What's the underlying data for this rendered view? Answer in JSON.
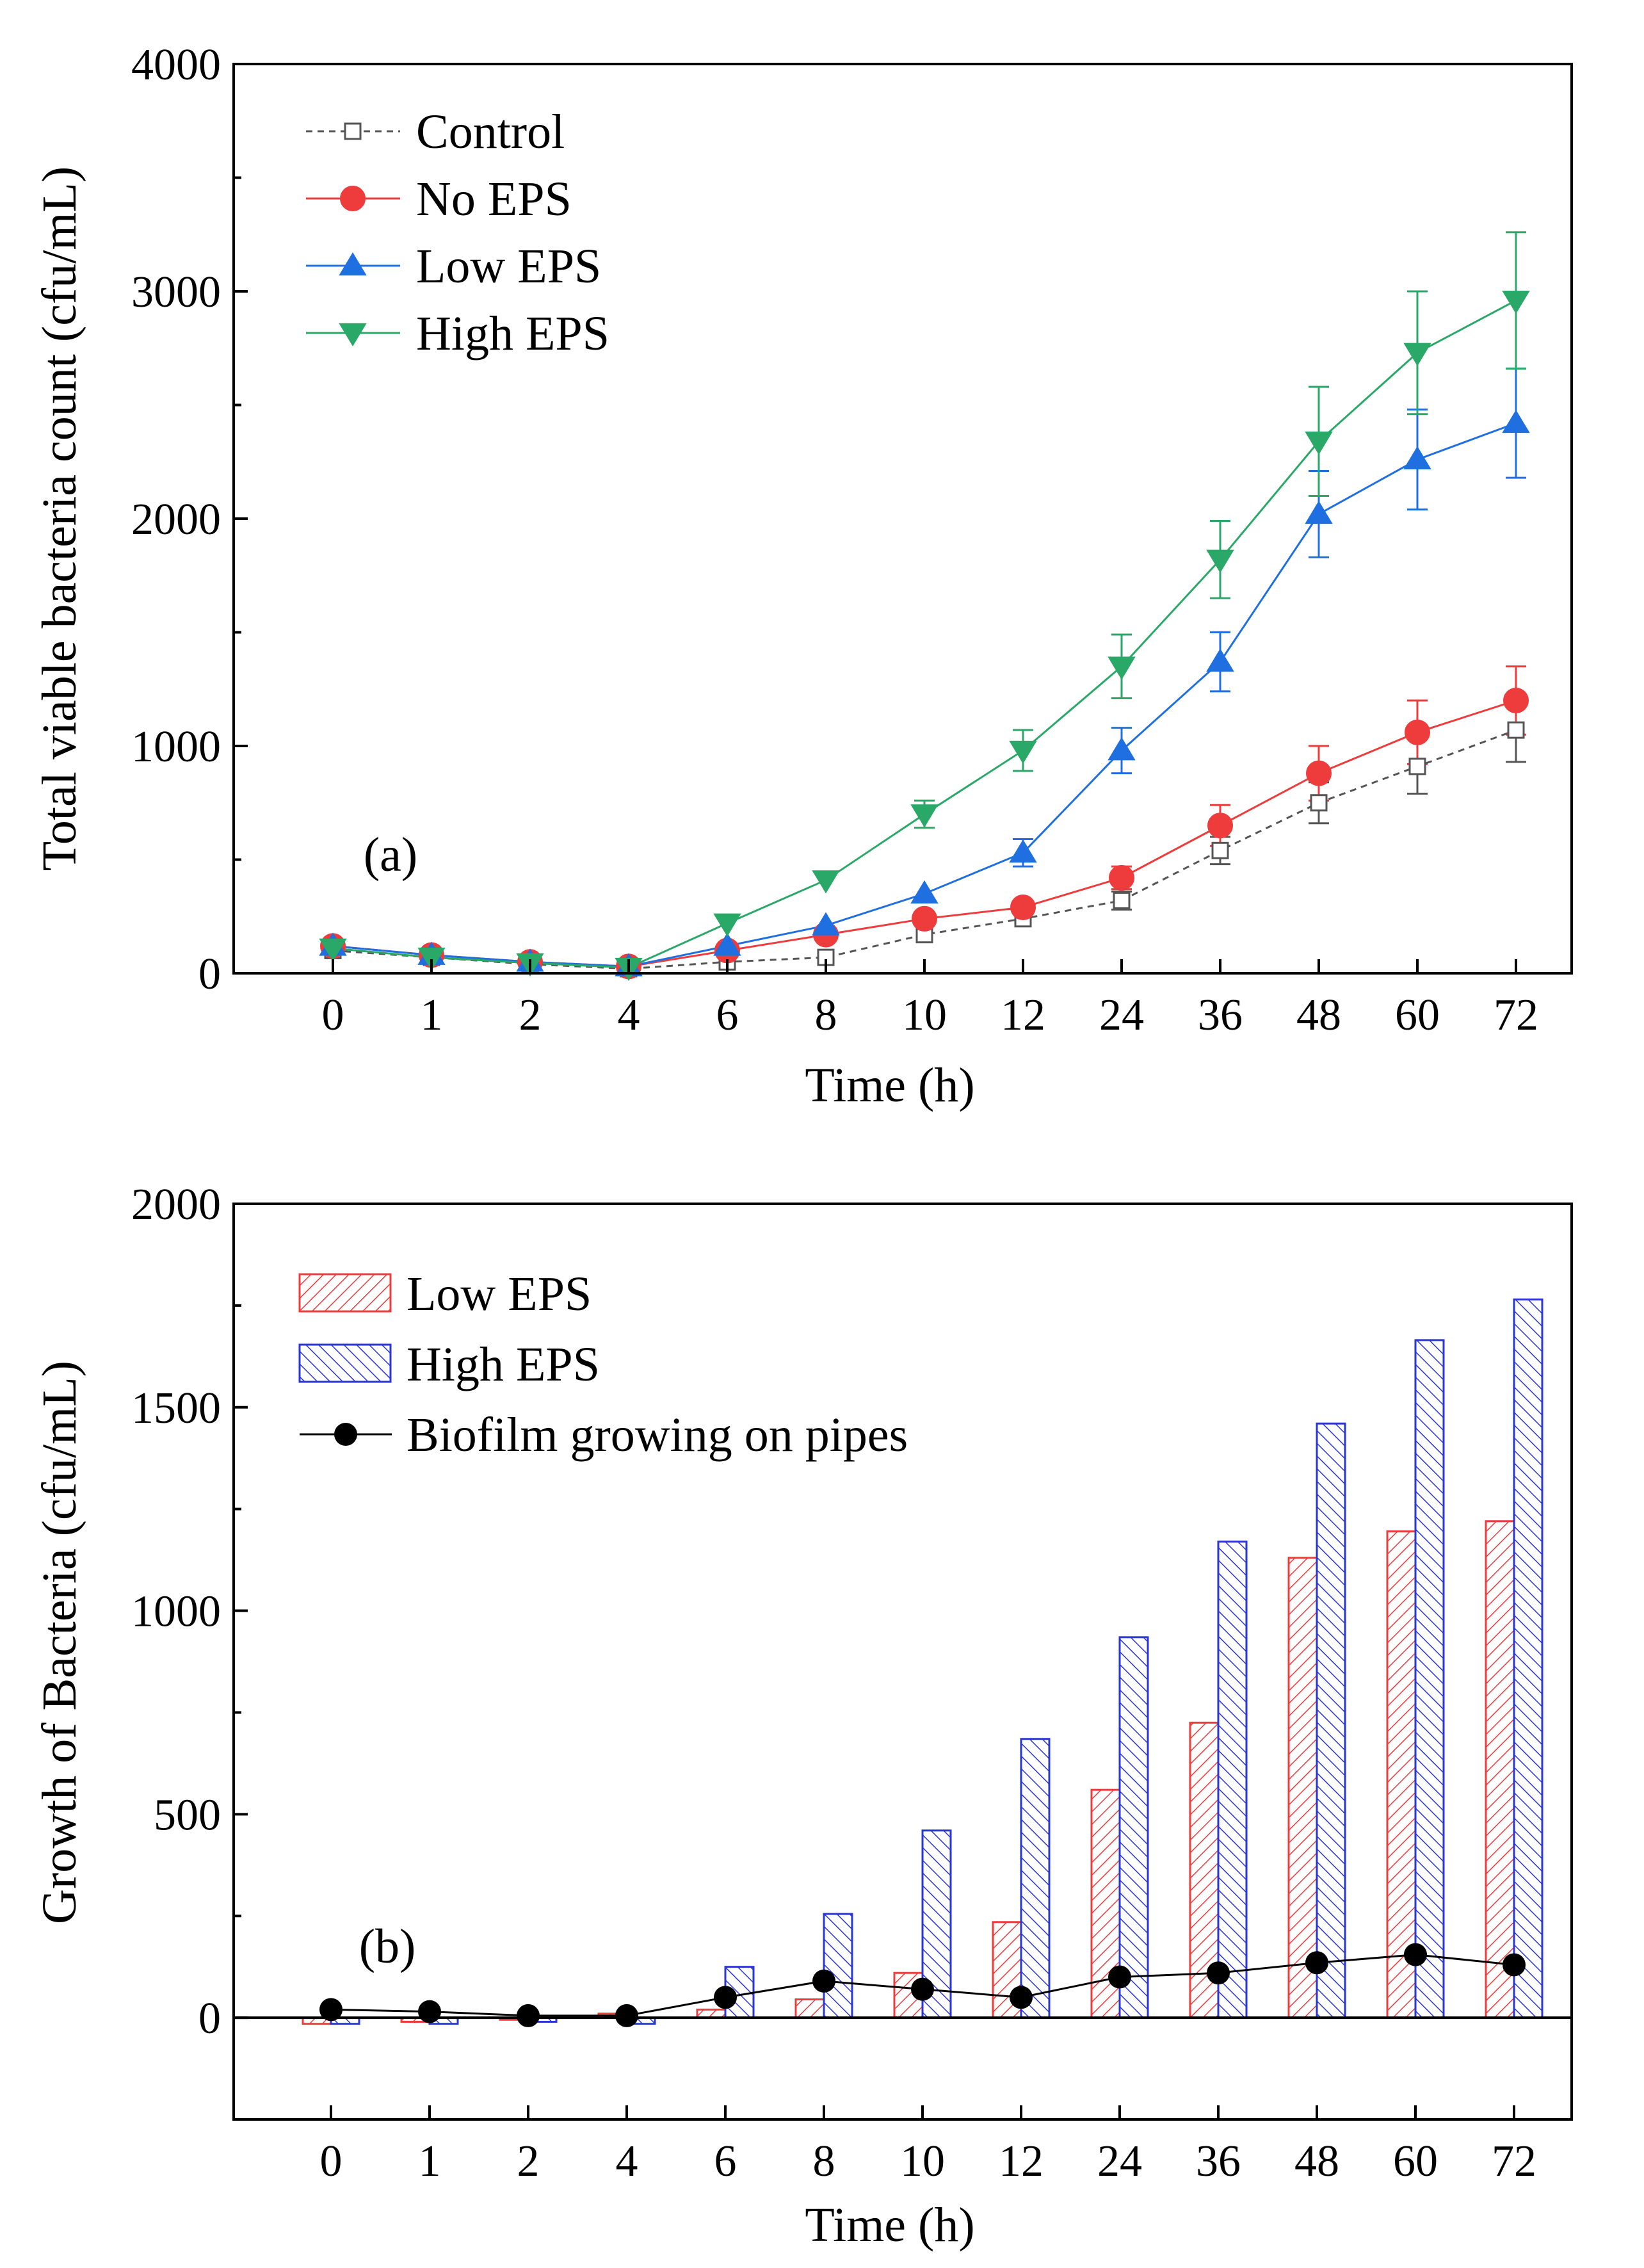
{
  "chart_data": [
    {
      "type": "line",
      "panel_label": "(a)",
      "xlabel": "Time (h)",
      "ylabel": "Total viable bacteria count (cfu/mL)",
      "categories": [
        "0",
        "1",
        "2",
        "4",
        "6",
        "8",
        "10",
        "12",
        "24",
        "36",
        "48",
        "60",
        "72"
      ],
      "ylim": [
        0,
        4000
      ],
      "yticks": [
        0,
        1000,
        2000,
        3000,
        4000
      ],
      "legend_position": "top-left",
      "grid": false,
      "series": [
        {
          "name": "Control",
          "color": "#555555",
          "marker": "open-square",
          "linestyle": "dashed",
          "values": [
            100,
            70,
            40,
            20,
            50,
            70,
            170,
            240,
            320,
            540,
            750,
            910,
            1070
          ],
          "errors": [
            0,
            0,
            0,
            0,
            0,
            0,
            0,
            0,
            40,
            60,
            90,
            120,
            140
          ]
        },
        {
          "name": "No EPS",
          "color": "#ee3b3b",
          "marker": "circle",
          "linestyle": "solid",
          "values": [
            120,
            80,
            50,
            30,
            100,
            170,
            240,
            290,
            420,
            650,
            880,
            1060,
            1200
          ],
          "errors": [
            0,
            0,
            0,
            0,
            0,
            0,
            0,
            0,
            50,
            90,
            120,
            140,
            150
          ]
        },
        {
          "name": "Low EPS",
          "color": "#1f6fe0",
          "marker": "triangle-up",
          "linestyle": "solid",
          "values": [
            120,
            80,
            50,
            30,
            120,
            210,
            350,
            530,
            980,
            1370,
            2020,
            2260,
            2420
          ],
          "errors": [
            0,
            0,
            0,
            0,
            0,
            0,
            0,
            60,
            100,
            130,
            190,
            220,
            240
          ]
        },
        {
          "name": "High EPS",
          "color": "#2aa868",
          "marker": "triangle-down",
          "linestyle": "solid",
          "values": [
            110,
            70,
            45,
            25,
            220,
            410,
            700,
            980,
            1350,
            1820,
            2340,
            2730,
            2960
          ],
          "errors": [
            0,
            0,
            0,
            0,
            0,
            0,
            60,
            90,
            140,
            170,
            240,
            270,
            300
          ]
        }
      ]
    },
    {
      "type": "bar",
      "panel_label": "(b)",
      "xlabel": "Time (h)",
      "ylabel": "Growth of Bacteria (cfu/mL)",
      "categories": [
        "0",
        "1",
        "2",
        "4",
        "6",
        "8",
        "10",
        "12",
        "24",
        "36",
        "48",
        "60",
        "72"
      ],
      "ylim": [
        -250,
        2000
      ],
      "yticks": [
        0,
        500,
        1000,
        1500,
        2000
      ],
      "legend_position": "top-left",
      "grid": false,
      "series": [
        {
          "name": "Low EPS",
          "kind": "bar",
          "color": "#ee3b3b",
          "pattern": "hatch-right",
          "values": [
            -15,
            -10,
            -5,
            10,
            20,
            45,
            110,
            235,
            560,
            725,
            1130,
            1195,
            1220
          ]
        },
        {
          "name": "High EPS",
          "kind": "bar",
          "color": "#2a35d6",
          "pattern": "hatch-left",
          "values": [
            -15,
            -15,
            -10,
            -15,
            125,
            255,
            460,
            685,
            935,
            1170,
            1460,
            1665,
            1765
          ]
        },
        {
          "name": "Biofilm growing on pipes",
          "kind": "line",
          "color": "#000000",
          "marker": "circle",
          "values": [
            20,
            15,
            5,
            5,
            50,
            90,
            70,
            50,
            100,
            110,
            135,
            155,
            130
          ]
        }
      ]
    }
  ]
}
